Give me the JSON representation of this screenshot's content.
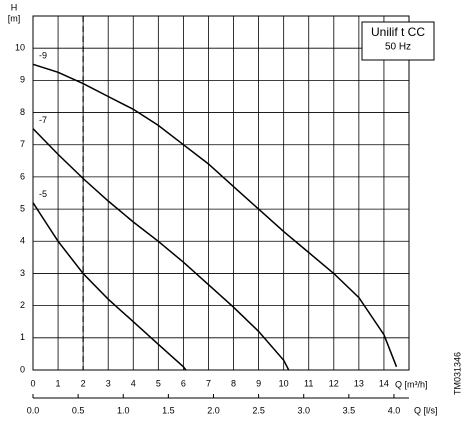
{
  "chart_data": {
    "type": "line",
    "y_label_top": "H",
    "y_label": "[m]",
    "x_label": "Q [m³/h]",
    "x2_label": "Q [l/s]",
    "legend_box": [
      "Unilif t CC",
      "50 Hz"
    ],
    "side_label": "TM031346",
    "xlim": [
      0,
      15
    ],
    "ylim": [
      0,
      11
    ],
    "xticks": [
      0,
      1,
      2,
      3,
      4,
      5,
      6,
      7,
      8,
      9,
      10,
      11,
      12,
      13,
      14
    ],
    "yticks": [
      0,
      1,
      2,
      3,
      4,
      5,
      6,
      7,
      8,
      9,
      10
    ],
    "x2lim": [
      0,
      4.1667
    ],
    "x2ticks": [
      {
        "value": 0,
        "label": "0.0"
      },
      0.5,
      {
        "value": 1,
        "label": "1.0"
      },
      1.5,
      {
        "value": 2,
        "label": "2.0"
      },
      2.5,
      {
        "value": 3,
        "label": "3.0"
      },
      3.5,
      {
        "value": 4,
        "label": "4.0"
      }
    ],
    "grid": true,
    "vlines": [
      2
    ],
    "series": [
      {
        "name": "-9",
        "color": "#000000",
        "x": [
          0,
          1,
          2,
          3,
          4,
          5,
          6,
          7,
          8,
          9,
          10,
          11,
          12,
          13,
          14,
          14.5
        ],
        "values": [
          9.5,
          9.25,
          8.9,
          8.5,
          8.1,
          7.6,
          7.0,
          6.4,
          5.7,
          5.0,
          4.3,
          3.65,
          3.0,
          2.25,
          1.1,
          0.1
        ]
      },
      {
        "name": "-7",
        "color": "#000000",
        "x": [
          0,
          1,
          2,
          3,
          4,
          5,
          6,
          7,
          8,
          9,
          10,
          10.2
        ],
        "values": [
          7.5,
          6.7,
          5.95,
          5.25,
          4.6,
          4.0,
          3.35,
          2.65,
          1.95,
          1.2,
          0.3,
          0
        ]
      },
      {
        "name": "-5",
        "color": "#000000",
        "x": [
          0,
          0.5,
          1,
          2,
          3,
          4,
          5,
          6,
          6.1
        ],
        "values": [
          5.2,
          4.6,
          4.0,
          3.0,
          2.2,
          1.5,
          0.8,
          0.1,
          0
        ]
      }
    ]
  }
}
